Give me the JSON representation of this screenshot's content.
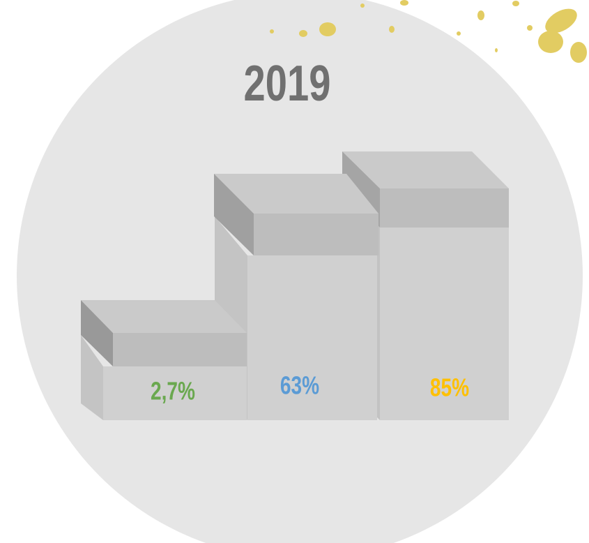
{
  "title": "2019",
  "labels": [
    "2,7%",
    "63%",
    "85%"
  ]
}
